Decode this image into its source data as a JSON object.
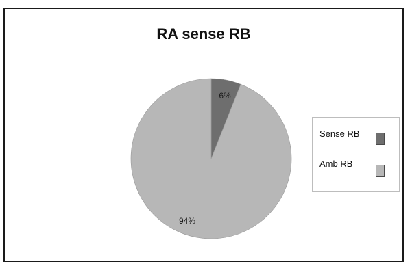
{
  "chart_data": {
    "type": "pie",
    "title": "RA sense RB",
    "categories": [
      "Sense RB",
      "Amb RB"
    ],
    "values": [
      6,
      94
    ],
    "data_labels": [
      "6%",
      "94%"
    ],
    "colors": [
      "#6e6e6e",
      "#b7b7b7"
    ],
    "legend_placement": "right",
    "legend": [
      {
        "label": "Sense RB",
        "color": "#6e6e6e"
      },
      {
        "label": "Amb RB",
        "color": "#b7b7b7"
      }
    ]
  }
}
